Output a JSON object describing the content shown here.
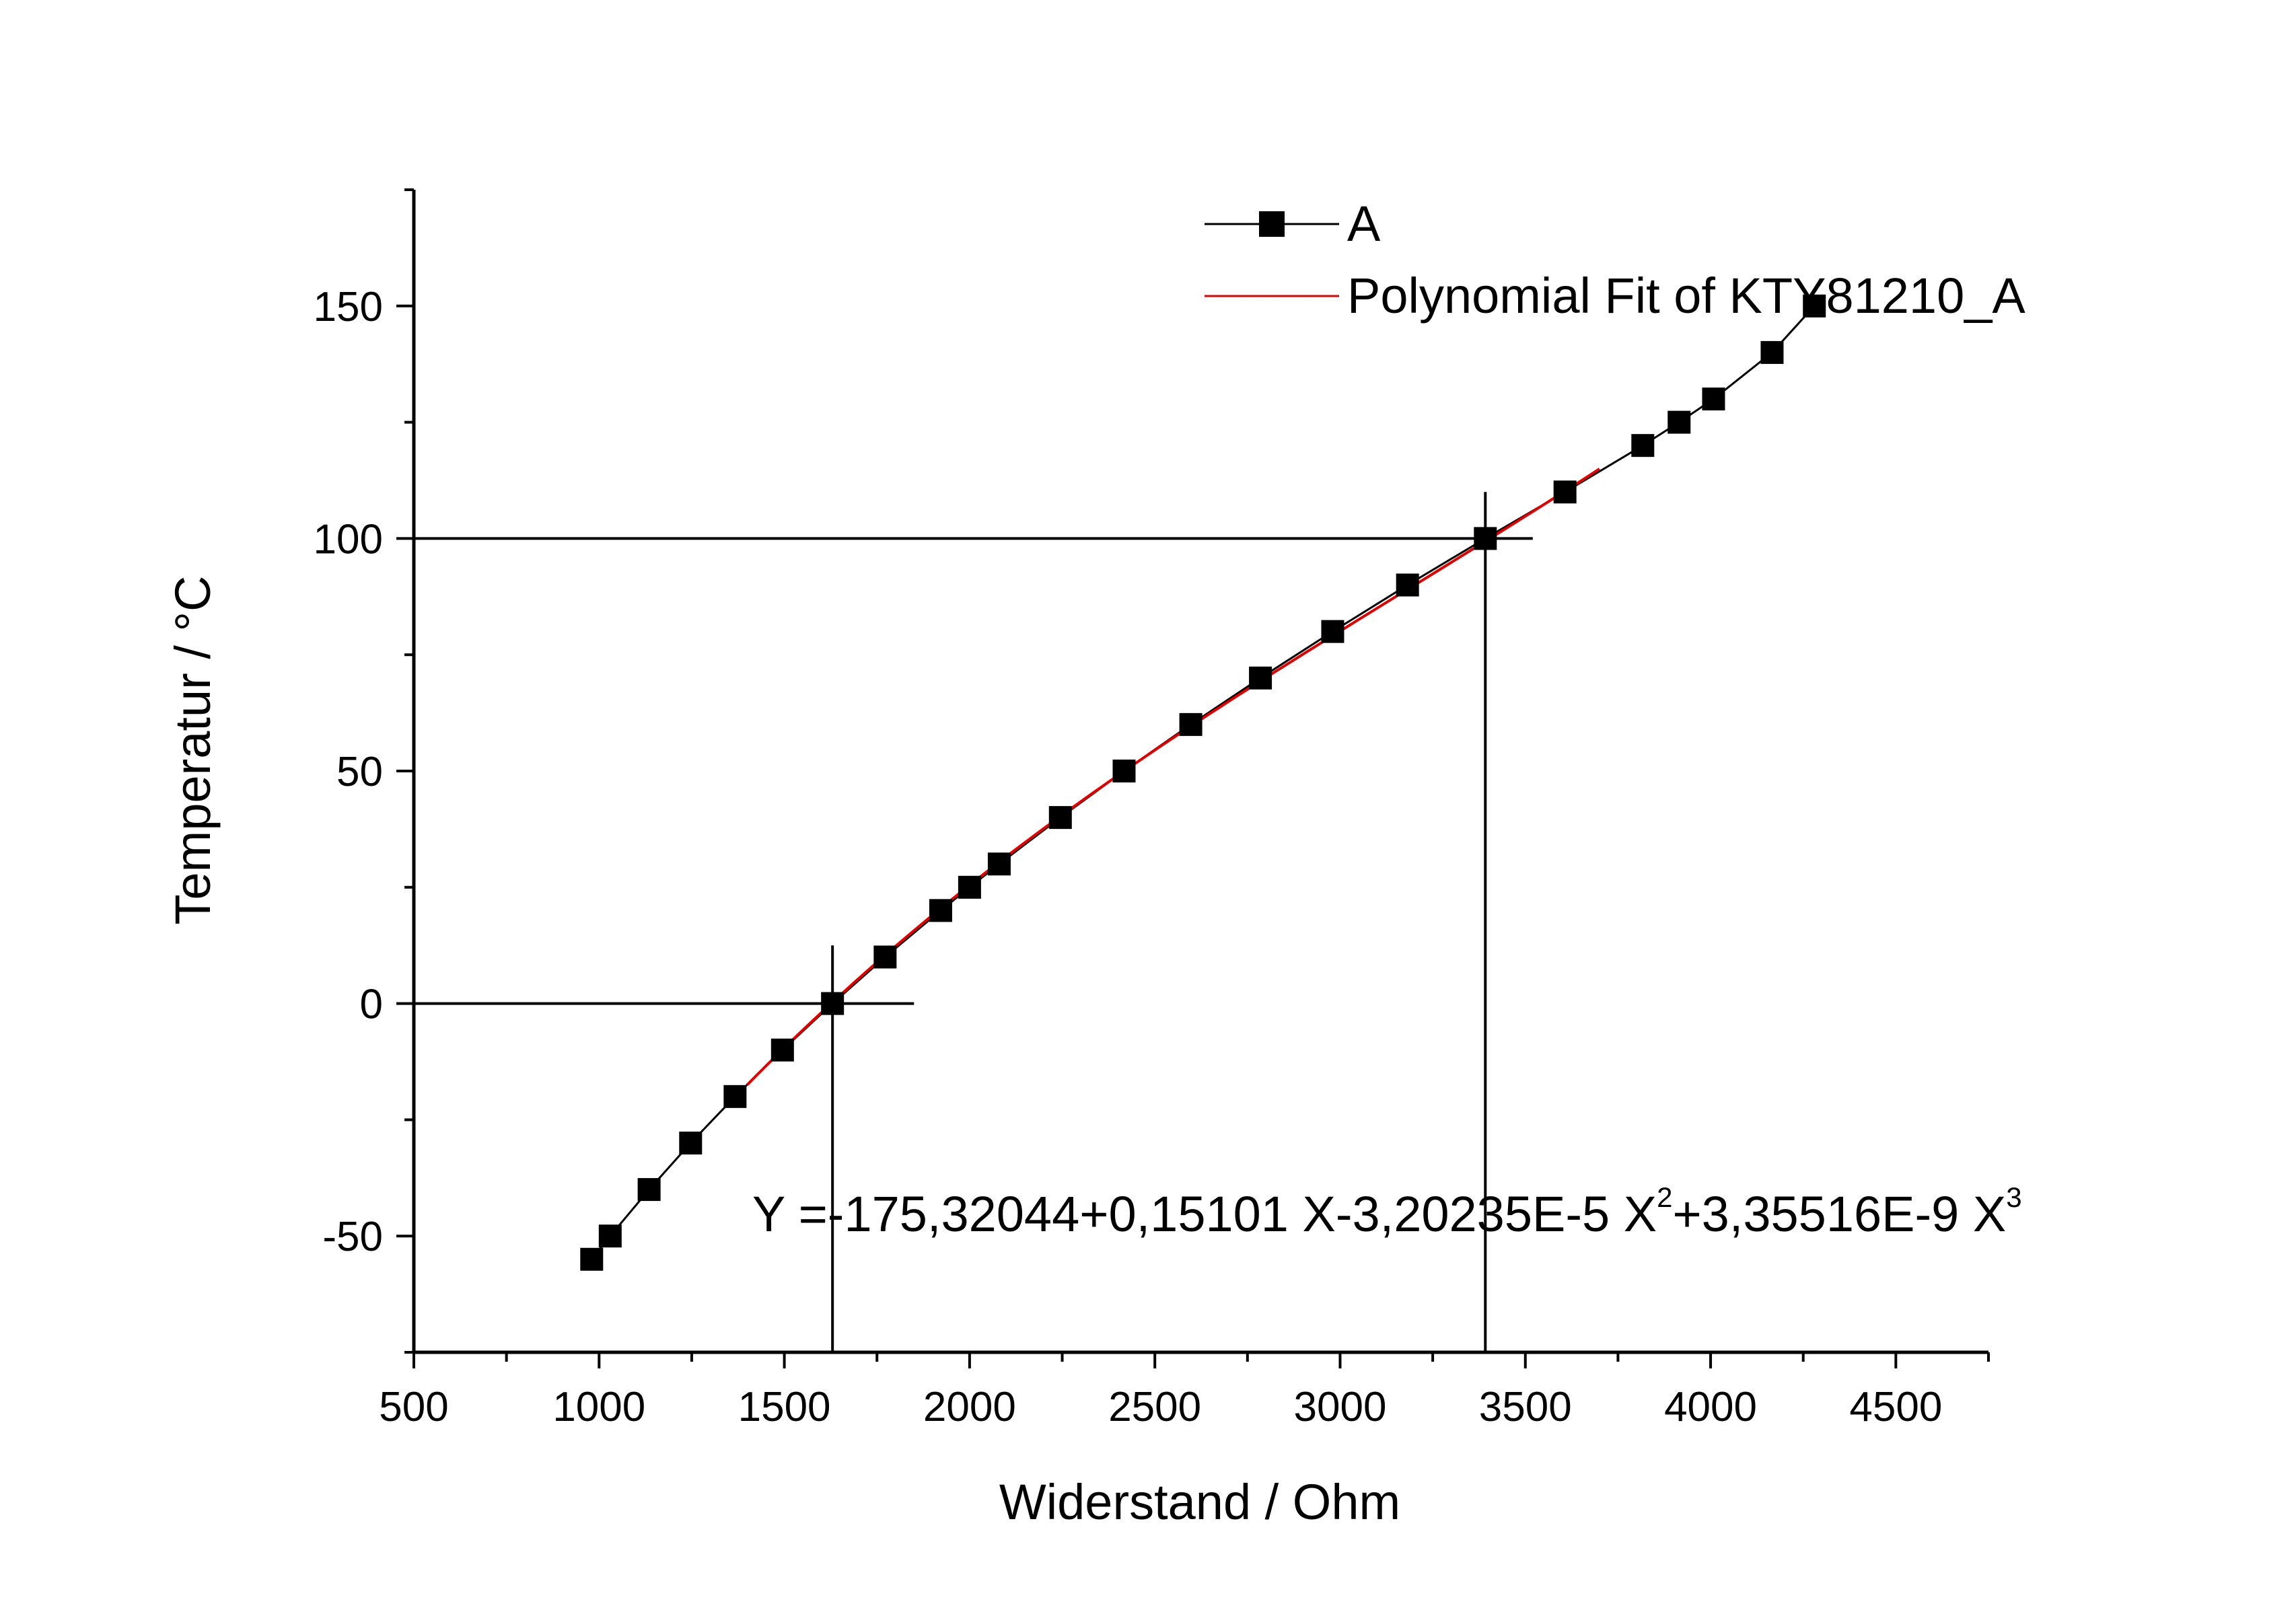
{
  "chart_data": {
    "type": "scatter",
    "xlabel": "Widerstand / Ohm",
    "ylabel": "Temperatur / °C",
    "xlim": [
      500,
      4750
    ],
    "ylim": [
      -75,
      175
    ],
    "xticks": [
      500,
      1000,
      1500,
      2000,
      2500,
      3000,
      3500,
      4000,
      4500
    ],
    "yticks": [
      -50,
      0,
      50,
      100,
      150
    ],
    "grid": false,
    "legend_position": "top-right",
    "series": [
      {
        "name": "A",
        "style": "line-with-square-markers",
        "color": "#000000",
        "x": [
          980,
          1030,
          1135,
          1247,
          1367,
          1495,
          1630,
          1772,
          1922,
          2000,
          2080,
          2245,
          2417,
          2597,
          2785,
          2980,
          3182,
          3392,
          3607,
          3817,
          3915,
          4008,
          4166,
          4280
        ],
        "y": [
          -55,
          -50,
          -40,
          -30,
          -20,
          -10,
          0,
          10,
          20,
          25,
          30,
          40,
          50,
          60,
          70,
          80,
          90,
          100,
          110,
          120,
          125,
          130,
          140,
          150
        ]
      },
      {
        "name": "Polynomial Fit of KTY81210_A",
        "style": "line",
        "color": "#e00000",
        "x_range": [
          1400,
          3700
        ],
        "coefficients": [
          -175.32044,
          0.15101,
          -3.20235e-05,
          3.35516e-09
        ]
      }
    ],
    "reference_lines": [
      {
        "x": 1630,
        "y": 0
      },
      {
        "x": 3392,
        "y": 100
      }
    ],
    "annotation": {
      "main": "Y =-175,32044+0,15101 X-3,20235E-5 X",
      "exp1": "2",
      "middle": "+3,35516E-9 X",
      "exp2": "3"
    }
  }
}
